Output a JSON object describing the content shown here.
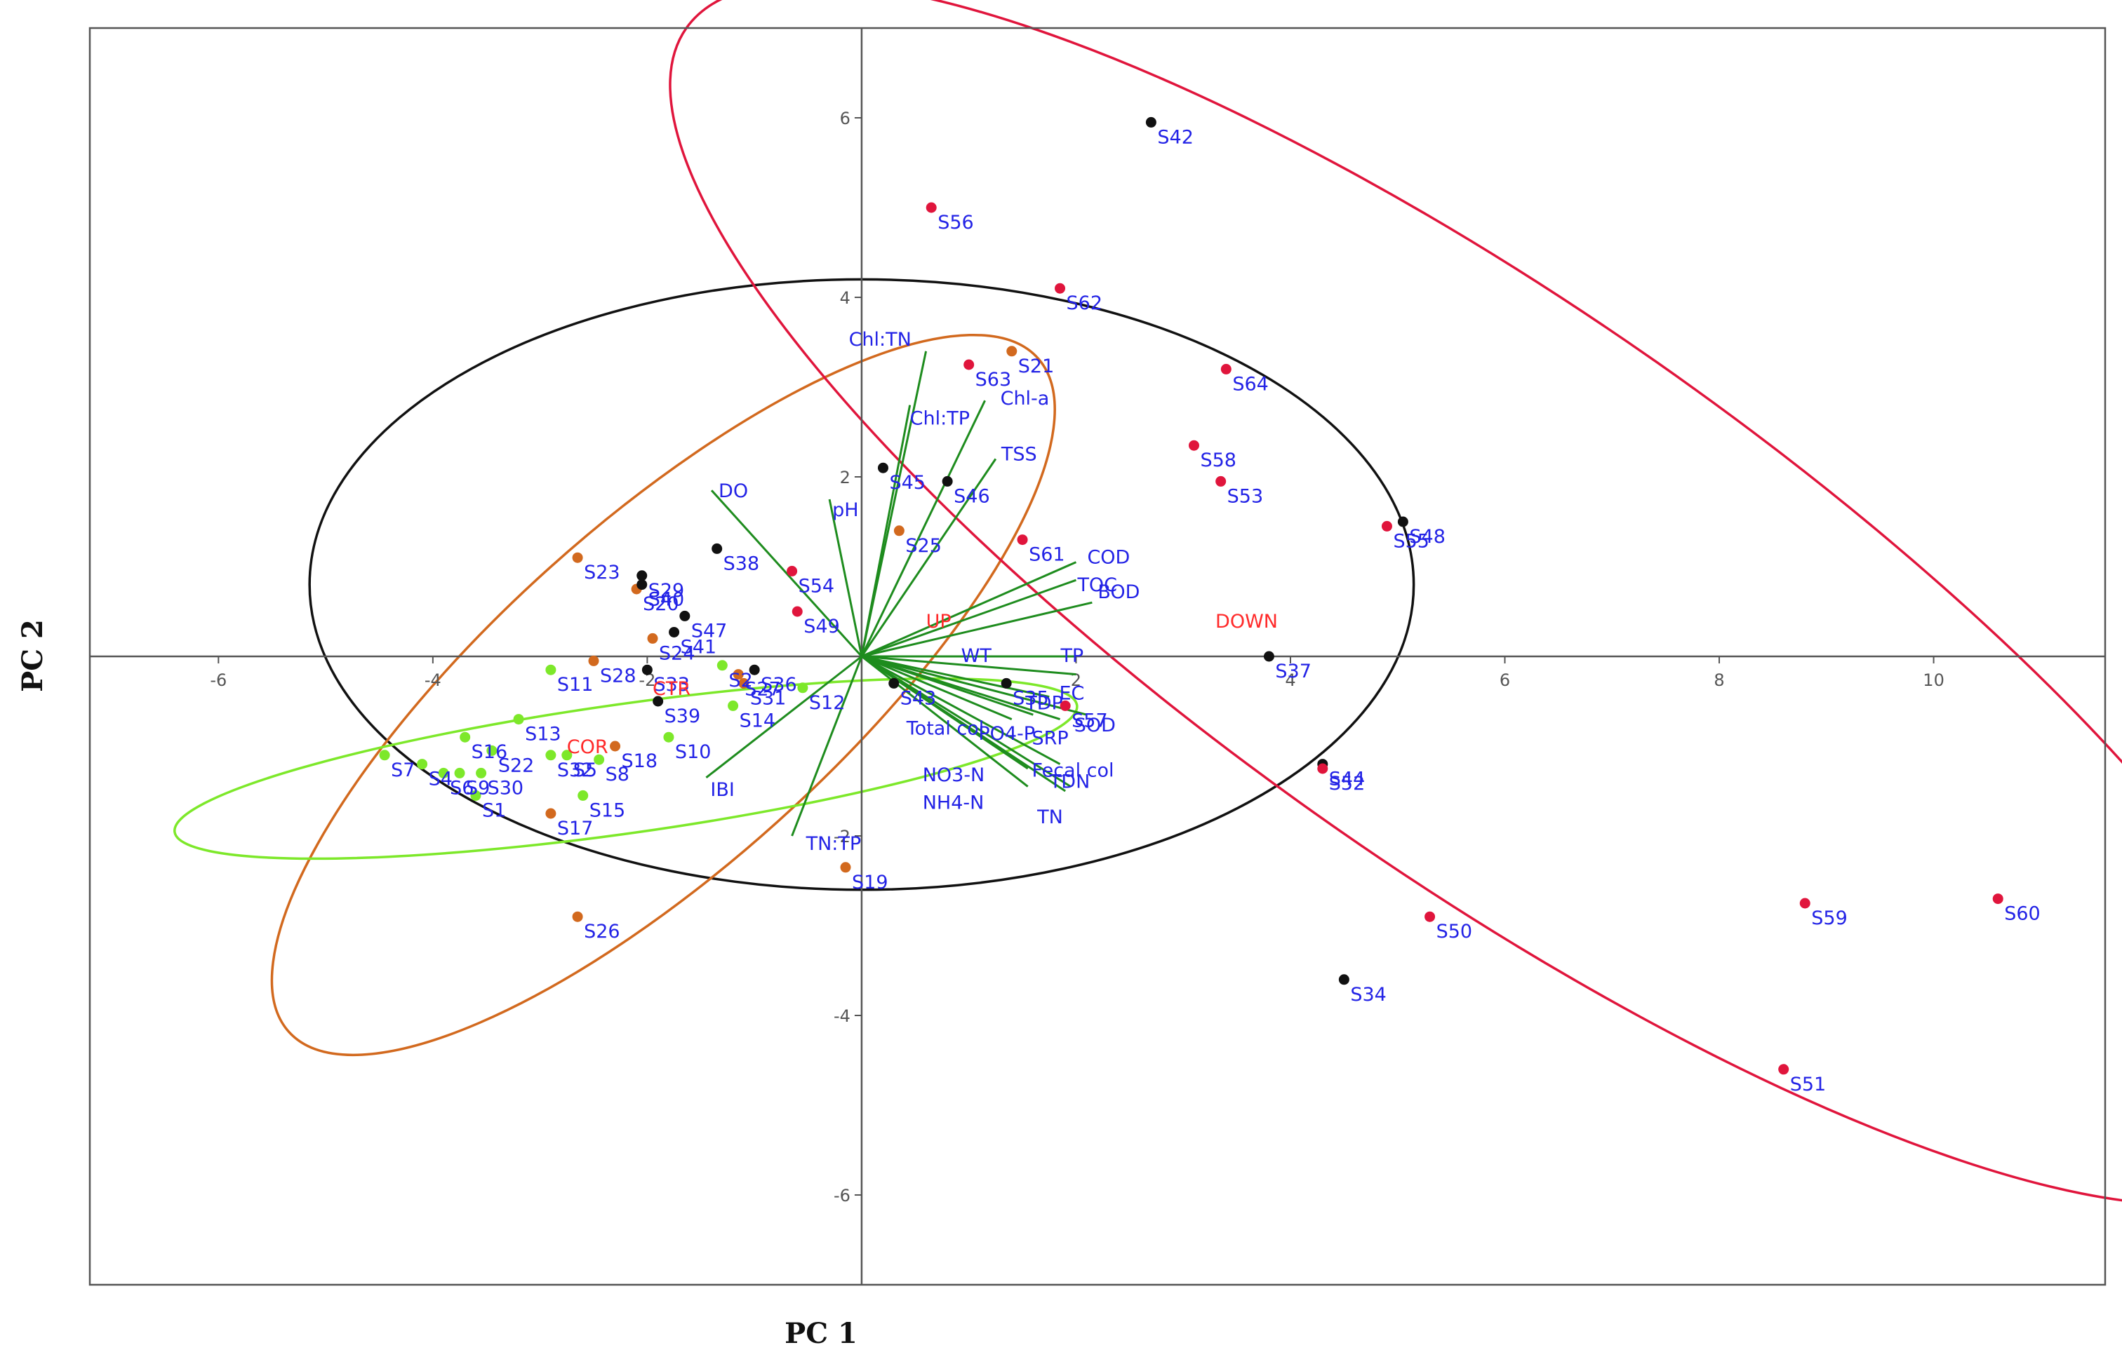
{
  "chart_data": {
    "type": "scatter",
    "title": "",
    "xlabel": "PC 1",
    "ylabel": "PC 2",
    "xlim": [
      -7.2,
      11.6
    ],
    "ylim": [
      -7.0,
      7.0
    ],
    "xticks": [
      -6,
      -4,
      -2,
      0,
      2,
      4,
      6,
      8,
      10
    ],
    "yticks": [
      -6,
      -4,
      -2,
      0,
      2,
      4,
      6
    ],
    "xtick_labels": [
      "-6",
      "-4",
      "-2",
      "",
      "2",
      "4",
      "6",
      "8",
      "10"
    ],
    "ytick_labels": [
      "-6",
      "-4",
      "-2",
      "",
      "2",
      "4",
      "6"
    ],
    "colors": {
      "axis": "#555555",
      "points_label": "#2323e6",
      "group_label": "#ff2a2a",
      "loading": "#1e8c1e"
    },
    "groups": [
      {
        "name": "UP",
        "color": "#d2691e",
        "label_pos": [
          0.6,
          0.4
        ]
      },
      {
        "name": "DOWN",
        "color": "#e0153c",
        "label_pos": [
          3.3,
          0.4
        ]
      },
      {
        "name": "CTR",
        "color": "#111111",
        "label_pos": [
          -1.95,
          -0.35
        ]
      },
      {
        "name": "COR",
        "color": "#7de82a",
        "label_pos": [
          -2.75,
          -1.0
        ]
      }
    ],
    "ellipses": [
      {
        "group": "CTR",
        "cx": 0.0,
        "cy": 0.8,
        "rx": 5.15,
        "ry": 3.4,
        "angle": 0
      },
      {
        "group": "UP",
        "cx": -1.85,
        "cy": -0.43,
        "rx": 4.7,
        "ry": 1.9,
        "angle": 42
      },
      {
        "group": "COR",
        "cx": -2.2,
        "cy": -1.25,
        "rx": 4.25,
        "ry": 0.72,
        "angle": 8
      },
      {
        "group": "DOWN",
        "cx": 5.9,
        "cy": 0.7,
        "rx": 9.2,
        "ry": 3.15,
        "angle": -35
      }
    ],
    "points": [
      {
        "label": "S1",
        "group": "COR",
        "x": -3.6,
        "y": -1.55
      },
      {
        "label": "S2",
        "group": "COR",
        "x": -1.3,
        "y": -0.1
      },
      {
        "label": "S4",
        "group": "COR",
        "x": -4.1,
        "y": -1.2
      },
      {
        "label": "S5",
        "group": "COR",
        "x": -2.75,
        "y": -1.1
      },
      {
        "label": "S6",
        "group": "COR",
        "x": -3.9,
        "y": -1.3
      },
      {
        "label": "S7",
        "group": "COR",
        "x": -4.45,
        "y": -1.1
      },
      {
        "label": "S8",
        "group": "COR",
        "x": -2.45,
        "y": -1.15
      },
      {
        "label": "S9",
        "group": "COR",
        "x": -3.75,
        "y": -1.3
      },
      {
        "label": "S10",
        "group": "COR",
        "x": -1.8,
        "y": -0.9
      },
      {
        "label": "S11",
        "group": "COR",
        "x": -2.9,
        "y": -0.15
      },
      {
        "label": "S12",
        "group": "COR",
        "x": -0.55,
        "y": -0.35
      },
      {
        "label": "S13",
        "group": "COR",
        "x": -3.2,
        "y": -0.7
      },
      {
        "label": "S14",
        "group": "COR",
        "x": -1.2,
        "y": -0.55
      },
      {
        "label": "S15",
        "group": "COR",
        "x": -2.6,
        "y": -1.55
      },
      {
        "label": "S16",
        "group": "COR",
        "x": -3.7,
        "y": -0.9
      },
      {
        "label": "S22",
        "group": "COR",
        "x": -3.45,
        "y": -1.05
      },
      {
        "label": "S30",
        "group": "COR",
        "x": -3.55,
        "y": -1.3
      },
      {
        "label": "S32",
        "group": "COR",
        "x": -2.9,
        "y": -1.1
      },
      {
        "label": "S17",
        "group": "UP",
        "x": -2.9,
        "y": -1.75
      },
      {
        "label": "S18",
        "group": "UP",
        "x": -2.3,
        "y": -1.0
      },
      {
        "label": "S19",
        "group": "UP",
        "x": -0.15,
        "y": -2.35
      },
      {
        "label": "S20",
        "group": "UP",
        "x": -2.1,
        "y": 0.75
      },
      {
        "label": "S21",
        "group": "UP",
        "x": 1.4,
        "y": 3.4
      },
      {
        "label": "S23",
        "group": "UP",
        "x": -2.65,
        "y": 1.1
      },
      {
        "label": "S24",
        "group": "UP",
        "x": -1.95,
        "y": 0.2
      },
      {
        "label": "S25",
        "group": "UP",
        "x": 0.35,
        "y": 1.4
      },
      {
        "label": "S26",
        "group": "UP",
        "x": -2.65,
        "y": -2.9
      },
      {
        "label": "S27",
        "group": "UP",
        "x": -1.15,
        "y": -0.2
      },
      {
        "label": "S28",
        "group": "UP",
        "x": -2.5,
        "y": -0.05
      },
      {
        "label": "S31",
        "group": "UP",
        "x": -1.1,
        "y": -0.3
      },
      {
        "label": "S29",
        "group": "CTR",
        "x": -2.05,
        "y": 0.9
      },
      {
        "label": "S33",
        "group": "CTR",
        "x": -2.0,
        "y": -0.15
      },
      {
        "label": "S34",
        "group": "CTR",
        "x": 4.5,
        "y": -3.6
      },
      {
        "label": "S35",
        "group": "CTR",
        "x": 1.35,
        "y": -0.3
      },
      {
        "label": "S36",
        "group": "CTR",
        "x": -1.0,
        "y": -0.15
      },
      {
        "label": "S37",
        "group": "CTR",
        "x": 3.8,
        "y": 0.0
      },
      {
        "label": "S38",
        "group": "CTR",
        "x": -1.35,
        "y": 1.2
      },
      {
        "label": "S39",
        "group": "CTR",
        "x": -1.9,
        "y": -0.5
      },
      {
        "label": "S40",
        "group": "CTR",
        "x": -2.05,
        "y": 0.8
      },
      {
        "label": "S41",
        "group": "CTR",
        "x": -1.75,
        "y": 0.27
      },
      {
        "label": "S42",
        "group": "CTR",
        "x": 2.7,
        "y": 5.95
      },
      {
        "label": "S43",
        "group": "CTR",
        "x": 0.3,
        "y": -0.3
      },
      {
        "label": "S44",
        "group": "CTR",
        "x": 4.3,
        "y": -1.2
      },
      {
        "label": "S45",
        "group": "CTR",
        "x": 0.2,
        "y": 2.1
      },
      {
        "label": "S46",
        "group": "CTR",
        "x": 0.8,
        "y": 1.95
      },
      {
        "label": "S47",
        "group": "CTR",
        "x": -1.65,
        "y": 0.45
      },
      {
        "label": "S48",
        "group": "CTR",
        "x": 5.05,
        "y": 1.5
      },
      {
        "label": "S49",
        "group": "DOWN",
        "x": -0.6,
        "y": 0.5
      },
      {
        "label": "S50",
        "group": "DOWN",
        "x": 5.3,
        "y": -2.9
      },
      {
        "label": "S51",
        "group": "DOWN",
        "x": 8.6,
        "y": -4.6
      },
      {
        "label": "S52",
        "group": "DOWN",
        "x": 4.3,
        "y": -1.25
      },
      {
        "label": "S53",
        "group": "DOWN",
        "x": 3.35,
        "y": 1.95
      },
      {
        "label": "S54",
        "group": "DOWN",
        "x": -0.65,
        "y": 0.95
      },
      {
        "label": "S55",
        "group": "DOWN",
        "x": 4.9,
        "y": 1.45
      },
      {
        "label": "S56",
        "group": "DOWN",
        "x": 0.65,
        "y": 5.0
      },
      {
        "label": "S57",
        "group": "DOWN",
        "x": 1.9,
        "y": -0.55
      },
      {
        "label": "S58",
        "group": "DOWN",
        "x": 3.1,
        "y": 2.35
      },
      {
        "label": "S59",
        "group": "DOWN",
        "x": 8.8,
        "y": -2.75
      },
      {
        "label": "S60",
        "group": "DOWN",
        "x": 10.6,
        "y": -2.7
      },
      {
        "label": "S61",
        "group": "DOWN",
        "x": 1.5,
        "y": 1.3
      },
      {
        "label": "S62",
        "group": "DOWN",
        "x": 1.85,
        "y": 4.1
      },
      {
        "label": "S63",
        "group": "DOWN",
        "x": 1.0,
        "y": 3.25
      },
      {
        "label": "S64",
        "group": "DOWN",
        "x": 3.4,
        "y": 3.2
      }
    ],
    "loadings": [
      {
        "name": "Chl:TN",
        "x": 0.6,
        "y": 3.4
      },
      {
        "name": "Chl:TP",
        "x": 0.45,
        "y": 2.8
      },
      {
        "name": "Chl-a",
        "x": 1.15,
        "y": 2.85
      },
      {
        "name": "TSS",
        "x": 1.25,
        "y": 2.2
      },
      {
        "name": "DO",
        "x": -1.4,
        "y": 1.85
      },
      {
        "name": "pH",
        "x": -0.3,
        "y": 1.75
      },
      {
        "name": "COD",
        "x": 2.0,
        "y": 1.05
      },
      {
        "name": "TOC",
        "x": 2.0,
        "y": 0.85
      },
      {
        "name": "BOD",
        "x": 2.15,
        "y": 0.6
      },
      {
        "name": "WT",
        "x": 1.25,
        "y": 0.0
      },
      {
        "name": "TP",
        "x": 2.0,
        "y": 0.0
      },
      {
        "name": "EC",
        "x": 2.0,
        "y": -0.2
      },
      {
        "name": "TDP",
        "x": 1.75,
        "y": -0.45
      },
      {
        "name": "PO4-P",
        "x": 1.6,
        "y": -0.65
      },
      {
        "name": "SRP",
        "x": 1.85,
        "y": -0.7
      },
      {
        "name": "SOD",
        "x": 2.1,
        "y": -0.65
      },
      {
        "name": "Total col",
        "x": 1.4,
        "y": -0.7
      },
      {
        "name": "Fecal col",
        "x": 1.85,
        "y": -1.2
      },
      {
        "name": "NO3-N",
        "x": 1.55,
        "y": -1.25
      },
      {
        "name": "NH4-N",
        "x": 1.55,
        "y": -1.45
      },
      {
        "name": "TDN",
        "x": 1.95,
        "y": -1.45
      },
      {
        "name": "TN",
        "x": 1.9,
        "y": -1.5
      },
      {
        "name": "IBI",
        "x": -1.45,
        "y": -1.35
      },
      {
        "name": "TN:TP",
        "x": -0.65,
        "y": -2.0
      }
    ]
  }
}
